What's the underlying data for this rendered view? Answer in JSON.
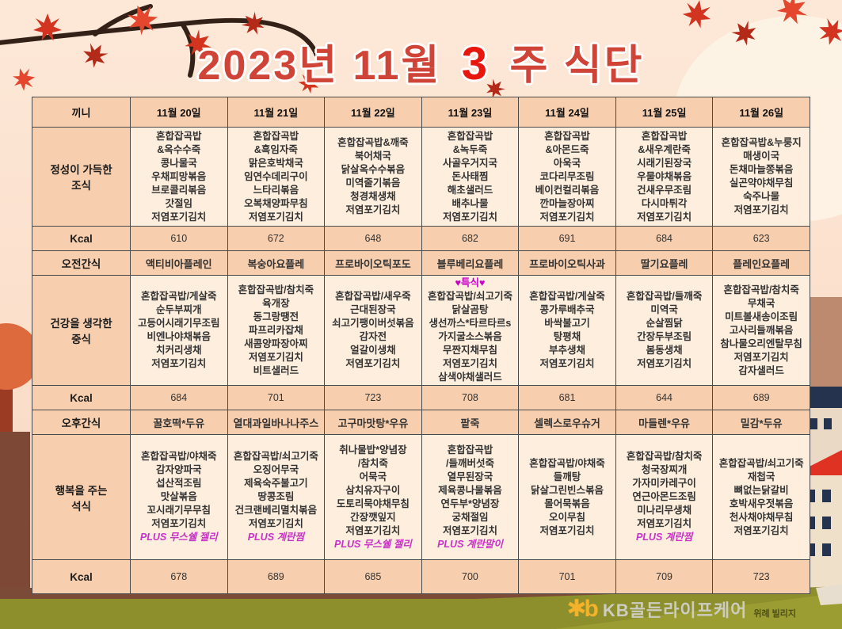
{
  "title": {
    "year_month": "2023년 11월",
    "week": "3",
    "suffix": "주 식단"
  },
  "colors": {
    "bg_top": "#fde8d8",
    "bg_mid": "#fbdfcb",
    "bg_bottom": "#f8d9c2",
    "title_red": "#cf4436",
    "accent_red": "#e8170d",
    "peach": "#f8cfae",
    "cream": "#fdeedd",
    "border_col": "#4a4a4a",
    "text_col": "#333333",
    "magenta": "#c800c8",
    "plus_magenta": "#c832c8",
    "olive": "#8d8e2c",
    "olive_light": "#a8a938",
    "ground_brown": "#7c4b38",
    "building_tan": "#bd8a70",
    "building_cream": "#eee0ca",
    "roof_red": "#e03222",
    "window_navy": "#26334f",
    "leaf_red": "#d23420",
    "leaf_dark": "#b42a18",
    "leaf_bright": "#e4472e",
    "branch_brown": "#332118",
    "tree_orange": "#dd6a3d",
    "trunk_red": "#9c3b24",
    "logo_yellow": "#f3b229",
    "logo_gray": "#cdccc0",
    "logo_dark": "#4e4f18"
  },
  "table": {
    "meal_col_header": "끼니",
    "kcal_label": "Kcal",
    "days": [
      "11월 20일",
      "11월 21일",
      "11월 22일",
      "11월 23일",
      "11월 24일",
      "11월 25일",
      "11월 26일"
    ],
    "rows": {
      "breakfast": {
        "label": "정성이 가득한\n조식",
        "menus": [
          [
            "혼합잡곡밥",
            "&옥수수죽",
            "콩나물국",
            "우채피망볶음",
            "브로콜리볶음",
            "갓절임",
            "저염포기김치"
          ],
          [
            "혼합잡곡밥",
            "&흑임자죽",
            "맑은호박채국",
            "임연수데리구이",
            "느타리볶음",
            "오복채양파무침",
            "저염포기김치"
          ],
          [
            "혼합잡곡밥&깨죽",
            "북어채국",
            "닭살옥수수볶음",
            "미역줄기볶음",
            "청경채생채",
            "저염포기김치"
          ],
          [
            "혼합잡곡밥",
            "&녹두죽",
            "사골우거지국",
            "돈사태찜",
            "해초샐러드",
            "배추나물",
            "저염포기김치"
          ],
          [
            "혼합잡곡밥",
            "&아몬드죽",
            "아욱국",
            "코다리무조림",
            "베이컨컬리볶음",
            "깐마늘장아찌",
            "저염포기김치"
          ],
          [
            "혼합잡곡밥",
            "&새우계란죽",
            "시래기된장국",
            "우물야채볶음",
            "건새우무조림",
            "다시마튀각",
            "저염포기김치"
          ],
          [
            "혼합잡곡밥&누룽지",
            "매생이국",
            "돈채마늘쫑볶음",
            "실곤약야채무침",
            "숙주나물",
            "저염포기김치"
          ]
        ],
        "kcal": [
          "610",
          "672",
          "648",
          "682",
          "691",
          "684",
          "623"
        ]
      },
      "am_snack": {
        "label": "오전간식",
        "items": [
          "액티비아플레인",
          "복숭아요플레",
          "프로바이오틱포도",
          "블루베리요플레",
          "프로바이오틱사과",
          "딸기요플레",
          "플레인요플레"
        ]
      },
      "lunch": {
        "label": "건강을 생각한\n중식",
        "specials": [
          "",
          "",
          "",
          "♥특식♥",
          "",
          "",
          ""
        ],
        "menus": [
          [
            "혼합잡곡밥/게살죽",
            "순두부찌개",
            "고등어시래기무조림",
            "비엔나야채볶음",
            "치커리생채",
            "저염포기김치"
          ],
          [
            "혼합잡곡밥/참치죽",
            "육개장",
            "동그랑땡전",
            "파프리카잡채",
            "새콤양파장아찌",
            "저염포기김치",
            "비트샐러드"
          ],
          [
            "혼합잡곡밥/새우죽",
            "근대된장국",
            "쇠고기팽이버섯볶음",
            "감자전",
            "얼갈이생채",
            "저염포기김치"
          ],
          [
            "혼합잡곡밥/쇠고기죽",
            "닭살곰탕",
            "생선까스*타르타르s",
            "가지굴소스볶음",
            "무짠지채무침",
            "저염포기김치",
            "삼색야채샐러드"
          ],
          [
            "혼합잡곡밥/게살죽",
            "콩가루배추국",
            "바싹불고기",
            "탕평채",
            "부추생채",
            "저염포기김치"
          ],
          [
            "혼합잡곡밥/들깨죽",
            "미역국",
            "순살찜닭",
            "간장두부조림",
            "봄동생채",
            "저염포기김치"
          ],
          [
            "혼합잡곡밥/참치죽",
            "무채국",
            "미트볼새송이조림",
            "고사리들깨볶음",
            "참나물오리엔탈무침",
            "저염포기김치",
            "감자샐러드"
          ]
        ],
        "kcal": [
          "684",
          "701",
          "723",
          "708",
          "681",
          "644",
          "689"
        ]
      },
      "pm_snack": {
        "label": "오후간식",
        "items": [
          "꿀호떡*두유",
          "열대과일바나나주스",
          "고구마맛탕*우유",
          "팥죽",
          "셀렉스로우슈거",
          "마들렌*우유",
          "밀감*두유"
        ]
      },
      "dinner": {
        "label": "행복을 주는\n석식",
        "menus": [
          [
            "혼합잡곡밥/야채죽",
            "감자양파국",
            "섭산적조림",
            "맛살볶음",
            "꼬시래기무무침",
            "저염포기김치"
          ],
          [
            "혼합잡곡밥/쇠고기죽",
            "오징어무국",
            "제육숙주불고기",
            "땅콩조림",
            "건크랜베리멸치볶음",
            "저염포기김치"
          ],
          [
            "취나물밥*양념장",
            "/참치죽",
            "어묵국",
            "삼치유자구이",
            "도토리묵야채무침",
            "간장깻잎지",
            "저염포기김치"
          ],
          [
            "혼합잡곡밥",
            "/들깨버섯죽",
            "열무된장국",
            "제육콩나물볶음",
            "연두부*양념장",
            "궁채절임",
            "저염포기김치"
          ],
          [
            "혼합잡곡밥/야채죽",
            "들깨탕",
            "닭살그린빈스볶음",
            "몰어묵볶음",
            "오이무침",
            "저염포기김치"
          ],
          [
            "혼합잡곡밥/참치죽",
            "청국장찌개",
            "가자미카레구이",
            "연근아몬드조림",
            "미나리무생채",
            "저염포기김치"
          ],
          [
            "혼합잡곡밥/쇠고기죽",
            "재첩국",
            "뼈없는닭갈비",
            "호박새우젓볶음",
            "천사채야채무침",
            "저염포기김치"
          ]
        ],
        "plus": [
          "PLUS 무스쉘 젤리",
          "PLUS 계란찜",
          "PLUS 무스쉘 젤리",
          "PLUS 계란말이",
          "",
          "PLUS 계란찜",
          ""
        ],
        "kcal": [
          "678",
          "689",
          "685",
          "700",
          "701",
          "709",
          "723"
        ]
      }
    }
  },
  "footer": {
    "logo_symbol": "✱b",
    "logo_text": "KB골든라이프케어",
    "sub_text": "위례 빌리지"
  }
}
